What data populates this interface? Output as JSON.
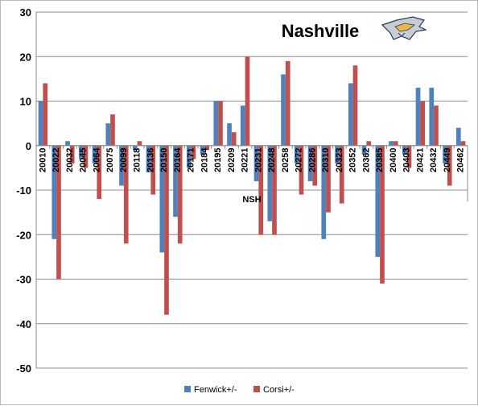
{
  "chart_data": {
    "type": "bar",
    "title": "Nashville",
    "xlabel": "NSH",
    "ylabel": "",
    "ylim": [
      -50,
      30
    ],
    "yticks": [
      30,
      20,
      10,
      0,
      -10,
      -20,
      -30,
      -40,
      -50
    ],
    "grid": "horizontal",
    "legend_position": "bottom",
    "categories": [
      "20010",
      "20022",
      "20032",
      "20045",
      "20064",
      "20075",
      "20099",
      "20118",
      "20136",
      "20150",
      "20164",
      "20171",
      "20184",
      "20195",
      "20209",
      "20221",
      "20231",
      "20248",
      "20258",
      "20272",
      "20286",
      "20310",
      "20323",
      "20352",
      "20362",
      "20385",
      "20400",
      "20403",
      "20421",
      "20432",
      "20449",
      "20462"
    ],
    "series": [
      {
        "name": "Fenwick+/-",
        "color": "#4f81bd",
        "values": [
          10,
          -21,
          1,
          -3,
          -4,
          5,
          -9,
          -1,
          -6,
          -24,
          -16,
          -5,
          -2,
          10,
          5,
          9,
          -8,
          -17,
          16,
          -4,
          -8,
          -21,
          -4,
          14,
          -2,
          -25,
          1,
          -2,
          13,
          13,
          -4,
          4
        ]
      },
      {
        "name": "Corsi+/-",
        "color": "#c0504d",
        "values": [
          14,
          -30,
          -4,
          -5,
          -12,
          7,
          -22,
          1,
          -11,
          -38,
          -22,
          -3,
          -1,
          10,
          3,
          20,
          -20,
          -20,
          19,
          -11,
          -9,
          -15,
          -13,
          18,
          1,
          -31,
          1,
          -5,
          10,
          9,
          -9,
          1
        ]
      }
    ]
  },
  "logo": {
    "name": "nashville-predators-logo-icon"
  }
}
